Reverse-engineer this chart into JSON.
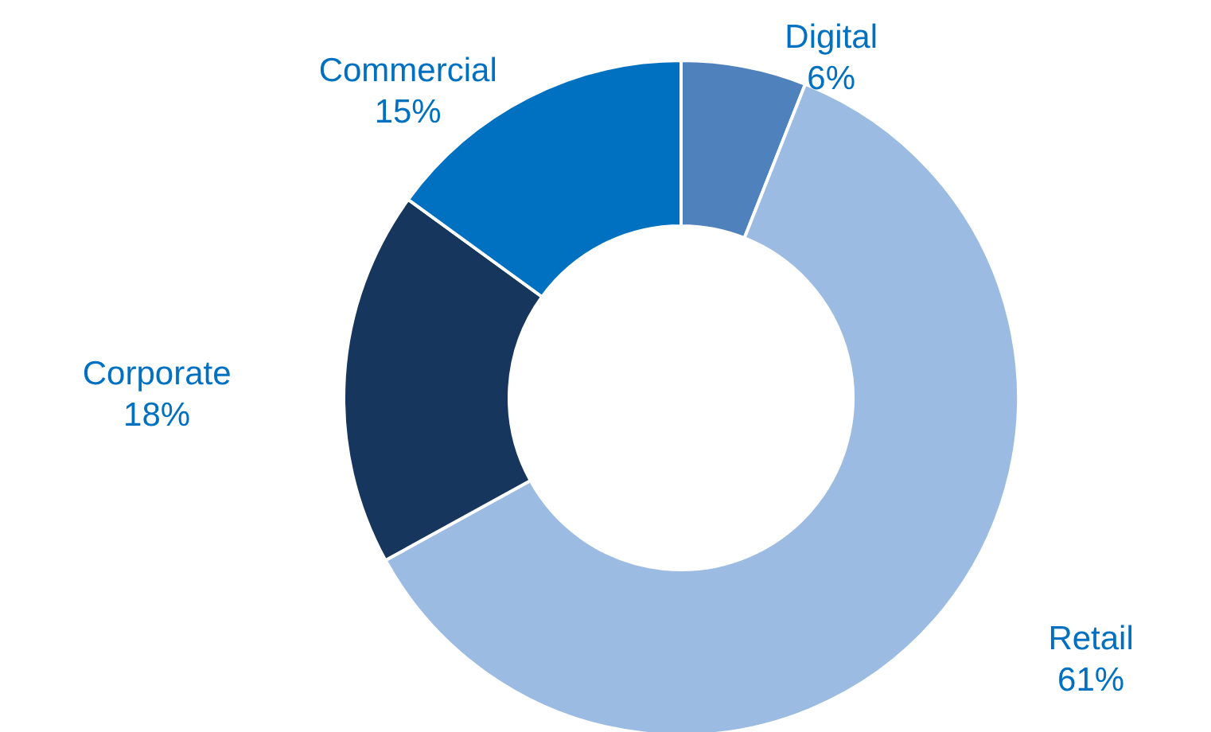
{
  "chart_data": {
    "type": "donut",
    "categories": [
      "Digital",
      "Retail",
      "Corporate",
      "Commercial"
    ],
    "values": [
      6,
      61,
      18,
      15
    ],
    "value_labels": [
      "6%",
      "61%",
      "18%",
      "15%"
    ],
    "colors": [
      "#4f81bd",
      "#9bbbe3",
      "#17365d",
      "#0070c0"
    ]
  }
}
